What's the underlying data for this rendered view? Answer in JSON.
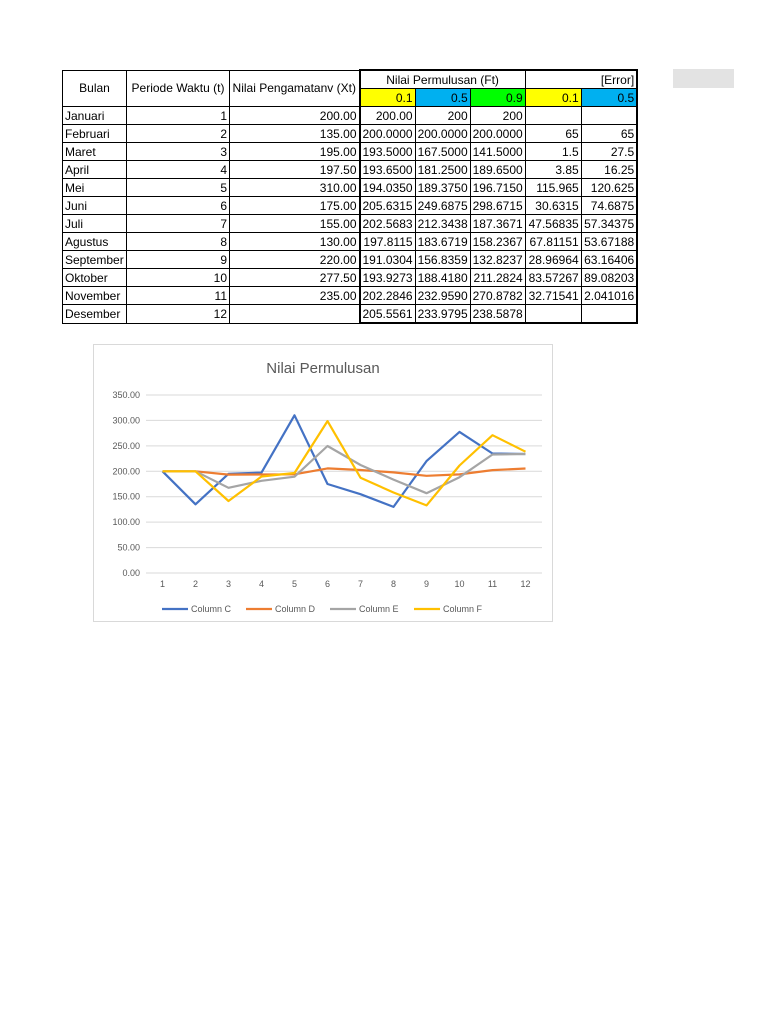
{
  "table": {
    "headers": {
      "bulan": "Bulan",
      "periode": "Periode Waktu (t)",
      "pengamatan": "Nilai Pengamatanv (Xt)",
      "permulusan": "Nilai Permulusan (Ft)",
      "error": "[Error]"
    },
    "alpha_labels": [
      "0.1",
      "0.5",
      "0.9",
      "0.1",
      "0.5"
    ],
    "alpha_colors": [
      "#ffff00",
      "#00b0f0",
      "#00ff00",
      "#ffff00",
      "#00b0f0"
    ],
    "rows": [
      [
        "Januari",
        "1",
        "200.00",
        "200.00",
        "200",
        "200",
        "",
        ""
      ],
      [
        "Februari",
        "2",
        "135.00",
        "200.0000",
        "200.0000",
        "200.0000",
        "65",
        "65"
      ],
      [
        "Maret",
        "3",
        "195.00",
        "193.5000",
        "167.5000",
        "141.5000",
        "1.5",
        "27.5"
      ],
      [
        "April",
        "4",
        "197.50",
        "193.6500",
        "181.2500",
        "189.6500",
        "3.85",
        "16.25"
      ],
      [
        "Mei",
        "5",
        "310.00",
        "194.0350",
        "189.3750",
        "196.7150",
        "115.965",
        "120.625"
      ],
      [
        "Juni",
        "6",
        "175.00",
        "205.6315",
        "249.6875",
        "298.6715",
        "30.6315",
        "74.6875"
      ],
      [
        "Juli",
        "7",
        "155.00",
        "202.5683",
        "212.3438",
        "187.3671",
        "47.56835",
        "57.34375"
      ],
      [
        "Agustus",
        "8",
        "130.00",
        "197.8115",
        "183.6719",
        "158.2367",
        "67.81151",
        "53.67188"
      ],
      [
        "September",
        "9",
        "220.00",
        "191.0304",
        "156.8359",
        "132.8237",
        "28.96964",
        "63.16406"
      ],
      [
        "Oktober",
        "10",
        "277.50",
        "193.9273",
        "188.4180",
        "211.2824",
        "83.57267",
        "89.08203"
      ],
      [
        "November",
        "11",
        "235.00",
        "202.2846",
        "232.9590",
        "270.8782",
        "32.71541",
        "2.041016"
      ],
      [
        "Desember",
        "12",
        "",
        "205.5561",
        "233.9795",
        "238.5878",
        "",
        ""
      ]
    ]
  },
  "chart_data": {
    "type": "line",
    "title": "Nilai Permulusan",
    "x": [
      "1",
      "2",
      "3",
      "4",
      "5",
      "6",
      "7",
      "8",
      "9",
      "10",
      "11",
      "12"
    ],
    "ylim": [
      0,
      350
    ],
    "yticks": [
      "0.00",
      "50.00",
      "100.00",
      "150.00",
      "200.00",
      "250.00",
      "300.00",
      "350.00"
    ],
    "grid": true,
    "legend_position": "bottom",
    "series": [
      {
        "name": "Column C",
        "color": "#4472c4",
        "values": [
          200,
          135,
          195,
          197.5,
          310,
          175,
          155,
          130,
          220,
          277.5,
          235,
          233.98
        ]
      },
      {
        "name": "Column D",
        "color": "#ed7d31",
        "values": [
          200,
          200,
          193.5,
          193.65,
          194.035,
          205.6315,
          202.5683,
          197.8115,
          191.0304,
          193.9273,
          202.2846,
          205.5561
        ]
      },
      {
        "name": "Column E",
        "color": "#a5a5a5",
        "values": [
          200,
          200,
          167.5,
          181.25,
          189.375,
          249.6875,
          212.3438,
          183.6719,
          156.8359,
          188.418,
          232.959,
          233.9795
        ]
      },
      {
        "name": "Column F",
        "color": "#ffc000",
        "values": [
          200,
          200,
          141.5,
          189.65,
          196.715,
          298.6715,
          187.3671,
          158.2367,
          132.8237,
          211.2824,
          270.8782,
          238.5878
        ]
      }
    ]
  }
}
